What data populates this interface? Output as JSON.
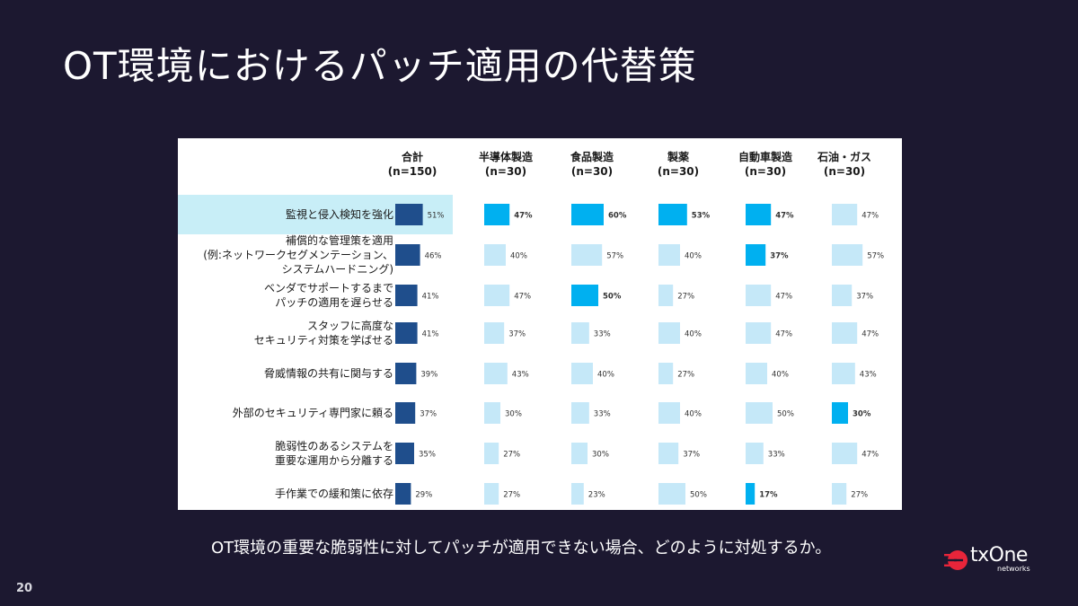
{
  "slide": {
    "title": "OT環境におけるパッチ適用の代替策",
    "caption": "OT環境の重要な脆弱性に対してパッチが適用できない場合、どのように対処するか。",
    "page_number": "20",
    "logo": {
      "text": "txOne",
      "sub": "networks"
    }
  },
  "colors": {
    "dark_blue": "#1f4e8c",
    "bright_blue": "#00b0f0",
    "light_blue": "#c5e8f8",
    "highlight_row": "#c8eef7"
  },
  "chart_data": {
    "type": "bar",
    "title": "",
    "categories": [
      [
        "監視と侵入検知を強化"
      ],
      [
        "補償的な管理策を適用",
        "(例:ネットワークセグメンテーション、",
        "システムハードニング)"
      ],
      [
        "ベンダでサポートするまで",
        "パッチの適用を遅らせる"
      ],
      [
        "スタッフに高度な",
        "セキュリティ対策を学ばせる"
      ],
      [
        "脅威情報の共有に関与する"
      ],
      [
        "外部のセキュリティ専門家に頼る"
      ],
      [
        "脆弱性のあるシステムを",
        "重要な運用から分離する"
      ],
      [
        "手作業での緩和策に依存"
      ]
    ],
    "series": [
      {
        "name": [
          "合計",
          "(n=150)"
        ],
        "values": [
          51,
          46,
          41,
          41,
          39,
          37,
          35,
          29
        ],
        "labels": [
          "51%",
          "46%",
          "41%",
          "41%",
          "39%",
          "37%",
          "35%",
          "29%"
        ]
      },
      {
        "name": [
          "半導体製造",
          "(n=30)"
        ],
        "values": [
          47,
          40,
          47,
          37,
          43,
          30,
          27,
          27
        ],
        "labels": [
          "47%",
          "40%",
          "47%",
          "37%",
          "43%",
          "30%",
          "27%",
          "27%"
        ]
      },
      {
        "name": [
          "食品製造",
          "(n=30)"
        ],
        "values": [
          60,
          57,
          50,
          33,
          40,
          33,
          30,
          23
        ],
        "labels": [
          "60%",
          "57%",
          "50%",
          "33%",
          "40%",
          "33%",
          "30%",
          "23%"
        ]
      },
      {
        "name": [
          "製薬",
          "(n=30)"
        ],
        "values": [
          53,
          40,
          27,
          40,
          27,
          40,
          37,
          50
        ],
        "labels": [
          "53%",
          "40%",
          "27%",
          "40%",
          "27%",
          "40%",
          "37%",
          "50%"
        ]
      },
      {
        "name": [
          "自動車製造",
          "(n=30)"
        ],
        "values": [
          47,
          37,
          47,
          47,
          40,
          50,
          33,
          17
        ],
        "labels": [
          "47%",
          "37%",
          "47%",
          "47%",
          "40%",
          "50%",
          "33%",
          "17%"
        ]
      },
      {
        "name": [
          "石油・ガス",
          "(n=30)"
        ],
        "values": [
          47,
          57,
          37,
          47,
          43,
          30,
          47,
          27
        ],
        "labels": [
          "47%",
          "57%",
          "37%",
          "47%",
          "43%",
          "30%",
          "47%",
          "27%"
        ]
      }
    ],
    "highlight": [
      [
        true,
        false,
        false,
        false,
        false,
        false,
        false,
        false
      ],
      [
        true,
        false,
        true,
        false,
        false,
        false,
        false,
        false
      ],
      [
        true,
        false,
        false,
        false,
        false,
        false,
        false,
        false
      ],
      [
        true,
        true,
        false,
        false,
        false,
        false,
        false,
        true
      ],
      [
        false,
        false,
        false,
        false,
        false,
        true,
        false,
        false
      ],
      [
        false,
        true,
        false,
        false,
        false,
        false,
        false,
        false
      ]
    ],
    "highlighted_category": 0,
    "grid": false,
    "legend": "none"
  }
}
